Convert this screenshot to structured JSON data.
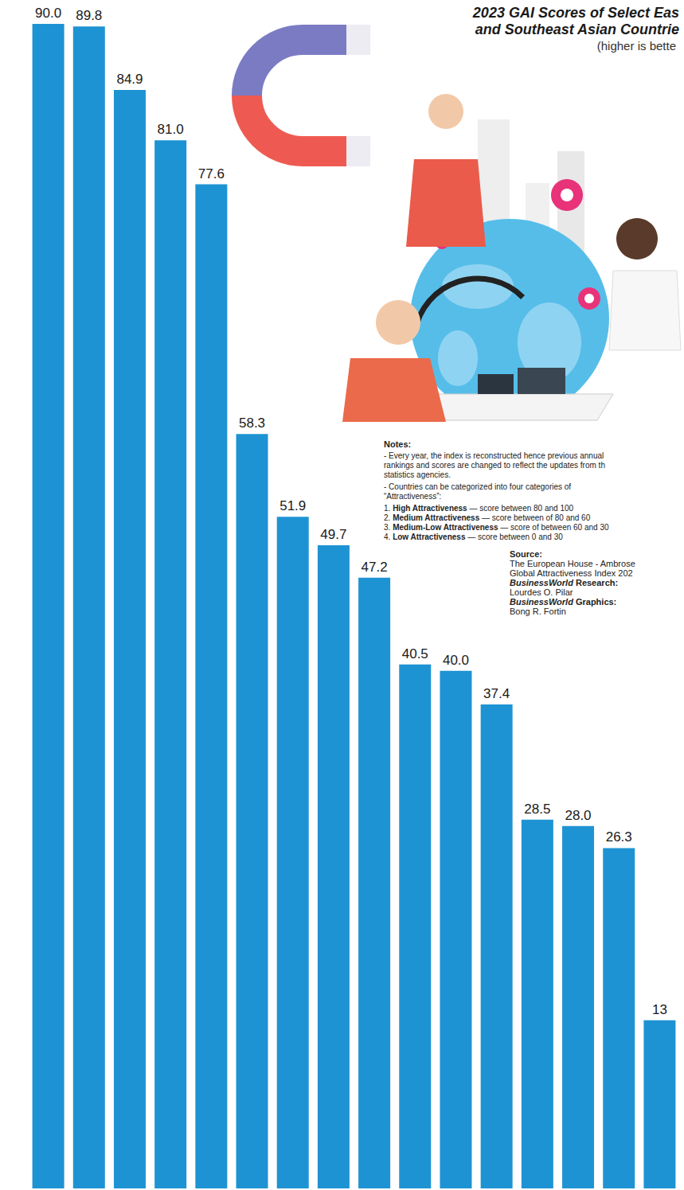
{
  "chart_data": {
    "type": "bar",
    "title_lines": [
      "2023 GAI Scores of Select Eas",
      "and Southeast Asian Countrie"
    ],
    "subtitle": "(higher is bette",
    "categories": [
      null,
      null,
      null,
      null,
      null,
      null,
      null,
      null,
      null,
      null,
      null,
      null,
      null,
      null,
      null,
      null
    ],
    "values": [
      90.0,
      89.8,
      84.9,
      81.0,
      77.6,
      58.3,
      51.9,
      49.7,
      47.2,
      40.5,
      40.0,
      37.4,
      28.5,
      28.0,
      26.3,
      13
    ],
    "value_labels": [
      "90.0",
      "89.8",
      "84.9",
      "81.0",
      "77.6",
      "58.3",
      "51.9",
      "49.7",
      "47.2",
      "40.5",
      "40.0",
      "37.4",
      "28.5",
      "28.0",
      "26.3",
      "13"
    ],
    "color": "#1e93d3",
    "ylim": [
      0,
      90
    ],
    "grid": false,
    "data_labels": true,
    "tick_labels": false,
    "notes": {
      "heading": "Notes:",
      "paragraphs": [
        [
          "- Every year, the index is reconstructed hence previous annual",
          "rankings and scores are changed to reflect the updates from th",
          "statistics agencies."
        ],
        [
          "- Countries can be categorized into four categories of",
          "“Attractiveness”:"
        ]
      ],
      "items": [
        {
          "number": "1.",
          "name": "High Attractiveness",
          "text": "— score between 80 and 100"
        },
        {
          "number": "2.",
          "name": "Medium Attractiveness",
          "text": "— score between of 80 and 60"
        },
        {
          "number": "3.",
          "name": "Medium-Low Attractiveness",
          "text": "— score of between 60 and 30"
        },
        {
          "number": "4.",
          "name": "Low Attractiveness",
          "text": "— score between 0 and 30"
        }
      ]
    },
    "source": {
      "heading": "Source:",
      "lines": [
        "The European House - Ambrose",
        "Global Attractiveness Index 202"
      ],
      "credits": [
        {
          "publication": "BusinessWorld",
          "role": "Research:",
          "name": "Lourdes O. Pilar"
        },
        {
          "publication": "BusinessWorld",
          "role": "Graphics:",
          "name": "Bong R. Fortin"
        }
      ]
    }
  }
}
